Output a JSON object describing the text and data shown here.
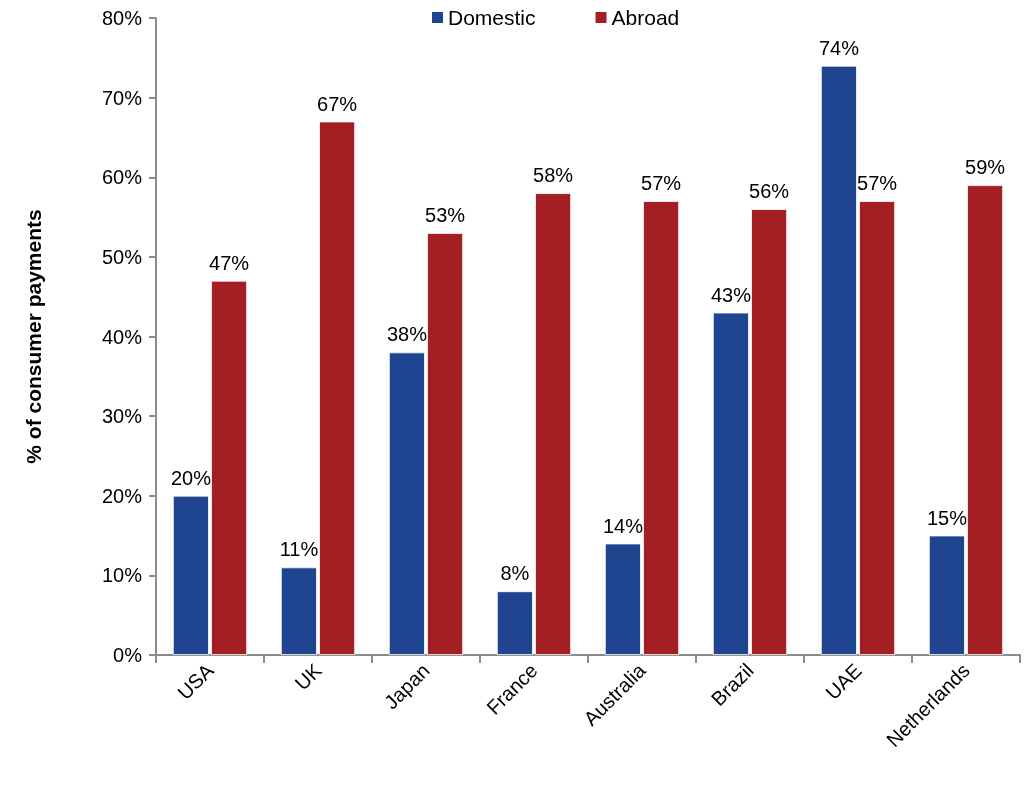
{
  "chart_data": {
    "type": "bar",
    "ylabel": "% of consumer payments",
    "categories": [
      "USA",
      "UK",
      "Japan",
      "France",
      "Australia",
      "Brazil",
      "UAE",
      "Netherlands"
    ],
    "series": [
      {
        "name": "Domestic",
        "color": "#1f4591",
        "values": [
          20,
          11,
          38,
          8,
          14,
          43,
          74,
          15
        ],
        "value_labels": [
          "20%",
          "11%",
          "38%",
          "8%",
          "14%",
          "43%",
          "74%",
          "15%"
        ]
      },
      {
        "name": "Abroad",
        "color": "#a31f24",
        "values": [
          47,
          67,
          53,
          58,
          57,
          56,
          57,
          59
        ],
        "value_labels": [
          "47%",
          "67%",
          "53%",
          "58%",
          "57%",
          "56%",
          "57%",
          "59%"
        ]
      }
    ],
    "ylim": [
      0,
      80
    ],
    "yticks": [
      {
        "value": 0,
        "label": "0%"
      },
      {
        "value": 10,
        "label": "10%"
      },
      {
        "value": 20,
        "label": "20%"
      },
      {
        "value": 30,
        "label": "30%"
      },
      {
        "value": 40,
        "label": "40%"
      },
      {
        "value": 50,
        "label": "50%"
      },
      {
        "value": 60,
        "label": "60%"
      },
      {
        "value": 70,
        "label": "70%"
      },
      {
        "value": 80,
        "label": "80%"
      }
    ],
    "grid": false,
    "legend": "top"
  }
}
